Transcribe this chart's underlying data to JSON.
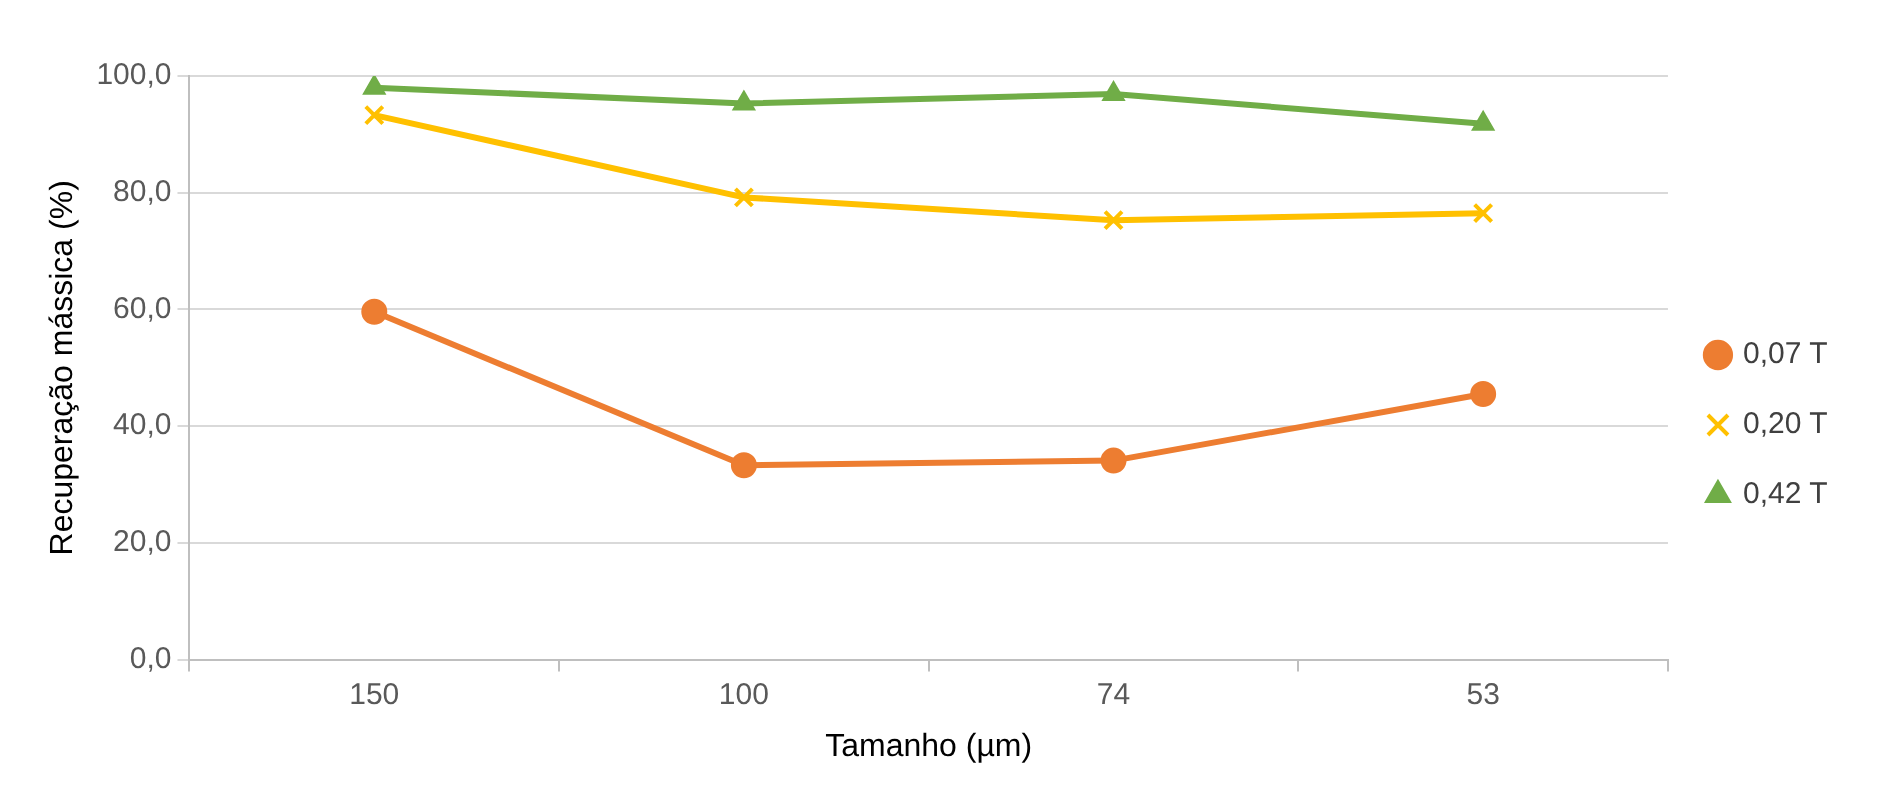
{
  "chart_data": {
    "type": "line",
    "xlabel": "Tamanho (µm)",
    "ylabel": "Recuperação mássica (%)",
    "categories": [
      "150",
      "100",
      "74",
      "53"
    ],
    "series": [
      {
        "name": "0,07 T",
        "color": "#ed7d31",
        "marker": "circle",
        "values": [
          59.6,
          33.3,
          34.1,
          45.5
        ]
      },
      {
        "name": "0,20 T",
        "color": "#ffc000",
        "marker": "cross",
        "values": [
          93.3,
          79.2,
          75.3,
          76.5
        ]
      },
      {
        "name": "0,42 T",
        "color": "#70ad47",
        "marker": "triangle",
        "values": [
          98.0,
          95.3,
          96.9,
          91.8
        ]
      }
    ],
    "ylim": [
      0,
      100
    ],
    "yticks": [
      {
        "value": 0,
        "label": "0,0"
      },
      {
        "value": 20,
        "label": "20,0"
      },
      {
        "value": 40,
        "label": "40,0"
      },
      {
        "value": 60,
        "label": "60,0"
      },
      {
        "value": 80,
        "label": "80,0"
      },
      {
        "value": 100,
        "label": "100,0"
      }
    ],
    "grid": "y",
    "legend": "right",
    "line_style": "solid"
  }
}
